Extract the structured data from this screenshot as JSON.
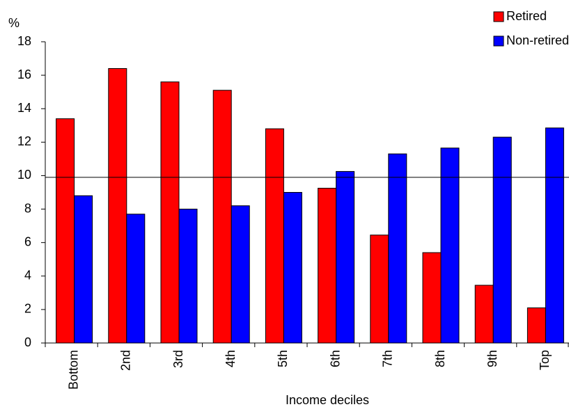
{
  "chart_data": {
    "type": "bar",
    "y_unit_label": "%",
    "x_axis_label": "Income deciles",
    "categories": [
      "Bottom",
      "2nd",
      "3rd",
      "4th",
      "5th",
      "6th",
      "7th",
      "8th",
      "9th",
      "Top"
    ],
    "series": [
      {
        "name": "Retired",
        "color": "#ff0000",
        "values": [
          13.4,
          16.4,
          15.6,
          15.1,
          12.8,
          9.25,
          6.45,
          5.4,
          3.45,
          2.1
        ]
      },
      {
        "name": "Non-retired",
        "color": "#0000ff",
        "values": [
          8.8,
          7.7,
          8.0,
          8.2,
          9.0,
          10.25,
          11.3,
          11.65,
          12.3,
          12.85
        ]
      }
    ],
    "reference_line": 9.9,
    "ylim": [
      0,
      18
    ],
    "yticks": [
      0,
      2,
      4,
      6,
      8,
      10,
      12,
      14,
      16,
      18
    ],
    "legend": "top-right"
  }
}
